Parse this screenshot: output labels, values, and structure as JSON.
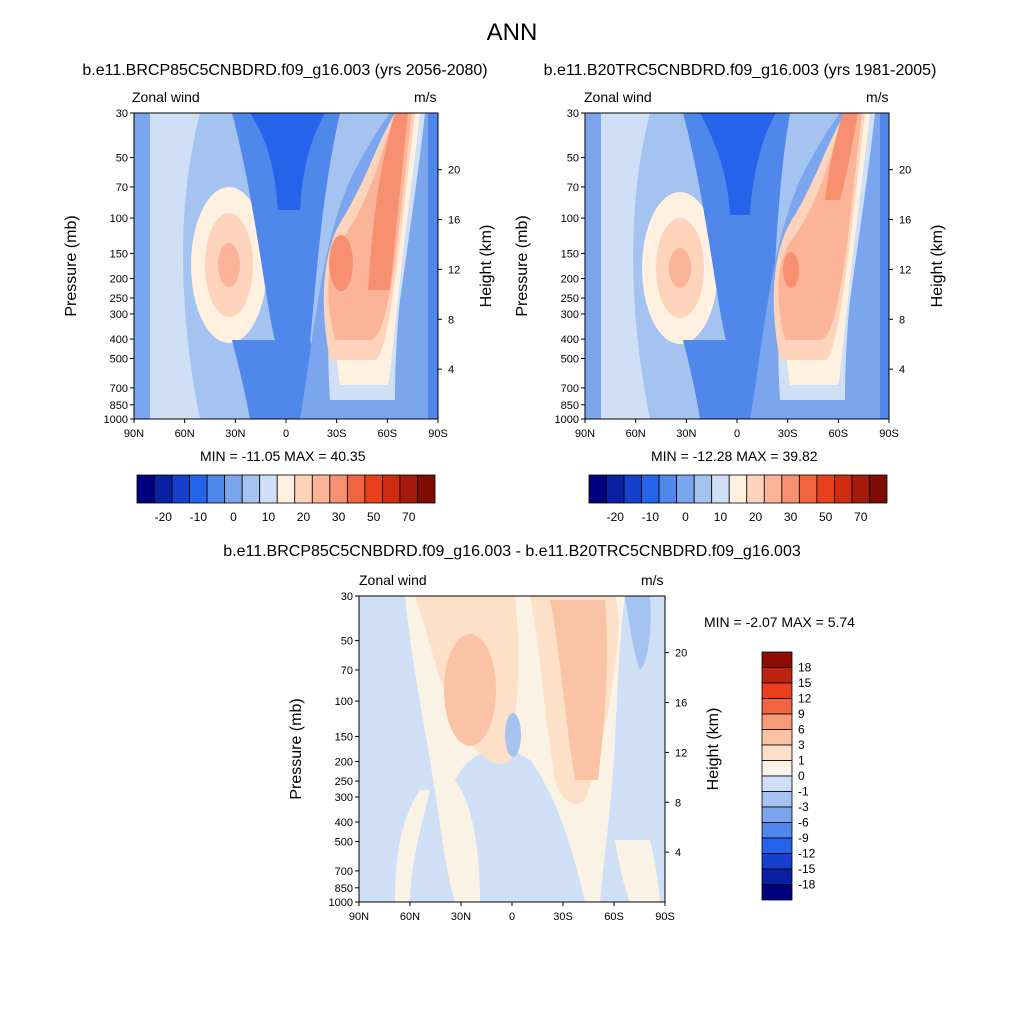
{
  "figure": {
    "title": "ANN",
    "diff_title": "b.e11.BRCP85C5CNBDRD.f09_g16.003 - b.e11.B20TRC5CNBDRD.f09_g16.003"
  },
  "panels": [
    {
      "title": "b.e11.BRCP85C5CNBDRD.f09_g16.003 (yrs 2056-2080)",
      "left_label": "Zonal wind",
      "right_label": "m/s",
      "stats": "MIN = -11.05  MAX = 40.35"
    },
    {
      "title": "b.e11.B20TRC5CNBDRD.f09_g16.003 (yrs 1981-2005)",
      "left_label": "Zonal wind",
      "right_label": "m/s",
      "stats": "MIN = -12.28  MAX = 39.82"
    },
    {
      "title": "",
      "left_label": "Zonal wind",
      "right_label": "m/s",
      "stats": "MIN =  -2.07  MAX =   5.74"
    }
  ],
  "colors": {
    "main_scale": [
      "#00007f",
      "#0a1fa3",
      "#1640cc",
      "#2563eb",
      "#4f87ea",
      "#7ba5ec",
      "#a5c3f0",
      "#cfe0f6",
      "#fff0e0",
      "#fdd3bc",
      "#fbb497",
      "#f79070",
      "#f0643e",
      "#e8401d",
      "#cf2a12",
      "#a51a0a",
      "#7f0b05"
    ],
    "diff_scale": [
      "#00007f",
      "#0a1fa3",
      "#1640cc",
      "#2563eb",
      "#4f87ea",
      "#7ba5ec",
      "#a5c3f0",
      "#cfe0f6",
      "#fbf2e6",
      "#fde0c8",
      "#fbc3a6",
      "#f79a76",
      "#f0643e",
      "#e8401d",
      "#bd2410",
      "#8f0b05"
    ]
  },
  "chart_data": [
    {
      "type": "heatmap",
      "title": "b.e11.BRCP85C5CNBDRD.f09_g16.003 (yrs 2056-2080)",
      "xlabel": "",
      "ylabel": "Pressure (mb)",
      "ylabel_right": "Height (km)",
      "x_ticks": [
        "90N",
        "60N",
        "30N",
        "0",
        "30S",
        "60S",
        "90S"
      ],
      "y_ticks": [
        30,
        50,
        70,
        100,
        150,
        200,
        250,
        300,
        400,
        500,
        700,
        850,
        1000
      ],
      "y_right_ticks": [
        4,
        8,
        12,
        16,
        20
      ],
      "y_scale": "log",
      "colorbar_labels": [
        "-20",
        "-10",
        "0",
        "10",
        "20",
        "30",
        "50",
        "70"
      ],
      "units": "m/s",
      "min": -11.05,
      "max": 40.35,
      "jets": [
        {
          "lat": -33,
          "pressure": 200,
          "value": 30
        },
        {
          "lat": 33,
          "pressure": 170,
          "value": 28
        }
      ]
    },
    {
      "type": "heatmap",
      "title": "b.e11.B20TRC5CNBDRD.f09_g16.003 (yrs 1981-2005)",
      "xlabel": "",
      "ylabel": "Pressure (mb)",
      "ylabel_right": "Height (km)",
      "x_ticks": [
        "90N",
        "60N",
        "30N",
        "0",
        "30S",
        "60S",
        "90S"
      ],
      "y_ticks": [
        30,
        50,
        70,
        100,
        150,
        200,
        250,
        300,
        400,
        500,
        700,
        850,
        1000
      ],
      "y_right_ticks": [
        4,
        8,
        12,
        16,
        20
      ],
      "y_scale": "log",
      "colorbar_labels": [
        "-20",
        "-10",
        "0",
        "10",
        "20",
        "30",
        "50",
        "70"
      ],
      "units": "m/s",
      "min": -12.28,
      "max": 39.82,
      "jets": [
        {
          "lat": -32,
          "pressure": 200,
          "value": 30
        },
        {
          "lat": 33,
          "pressure": 180,
          "value": 27
        }
      ]
    },
    {
      "type": "heatmap",
      "title": "b.e11.BRCP85C5CNBDRD.f09_g16.003 - b.e11.B20TRC5CNBDRD.f09_g16.003",
      "xlabel": "",
      "ylabel": "Pressure (mb)",
      "ylabel_right": "Height (km)",
      "x_ticks": [
        "90N",
        "60N",
        "30N",
        "0",
        "30S",
        "60S",
        "90S"
      ],
      "y_ticks": [
        30,
        50,
        70,
        100,
        150,
        200,
        250,
        300,
        400,
        500,
        700,
        850,
        1000
      ],
      "y_right_ticks": [
        4,
        8,
        12,
        16,
        20
      ],
      "y_scale": "log",
      "colorbar_labels": [
        "18",
        "15",
        "12",
        "9",
        "6",
        "3",
        "1",
        "0",
        "-1",
        "-3",
        "-6",
        "-9",
        "-12",
        "-15",
        "-18"
      ],
      "units": "m/s",
      "min": -2.07,
      "max": 5.74
    }
  ]
}
